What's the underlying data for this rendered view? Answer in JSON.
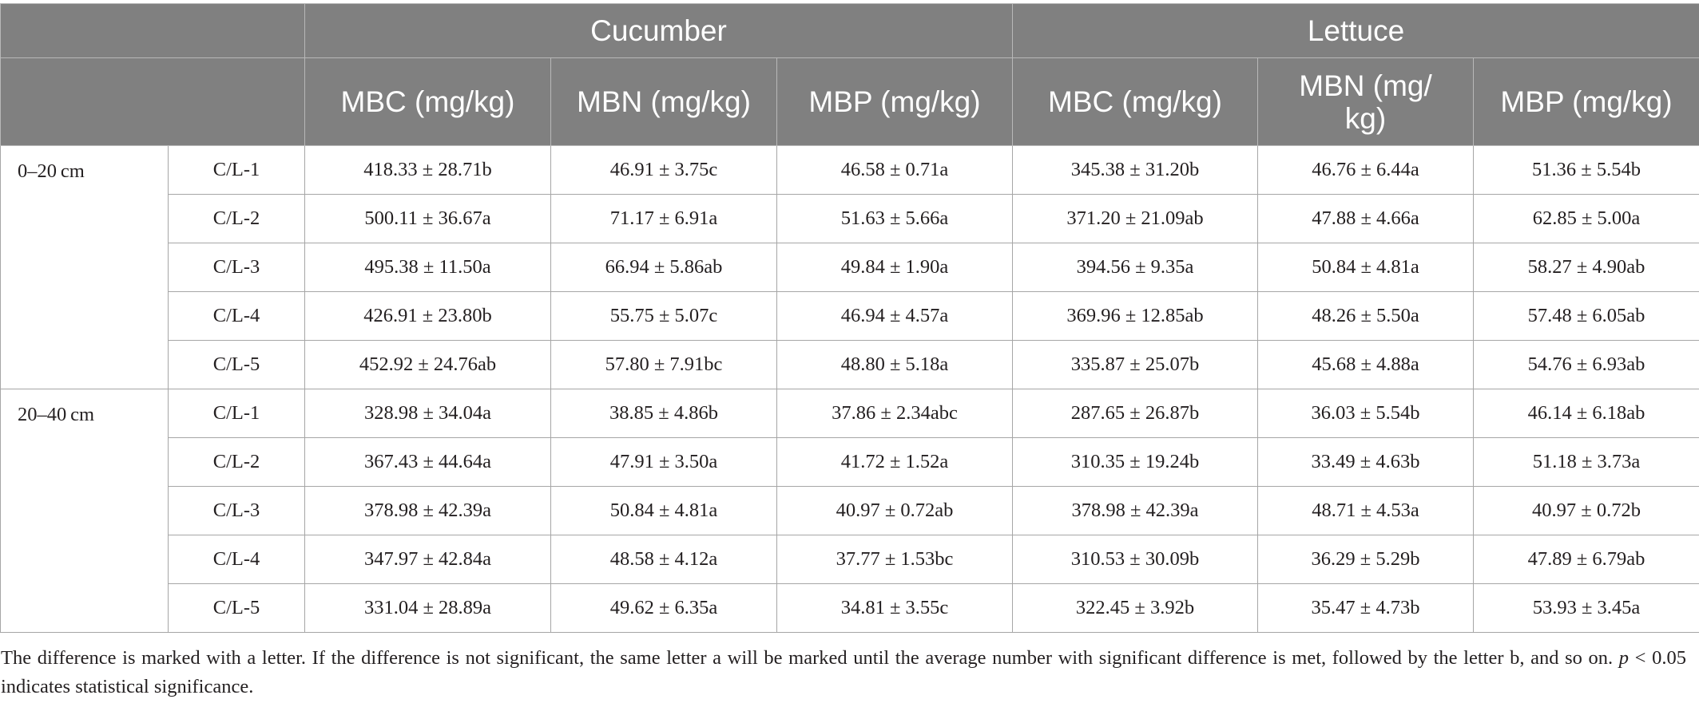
{
  "table": {
    "crops": [
      "Cucumber",
      "Lettuce"
    ],
    "columns": [
      "MBC (mg/kg)",
      "MBN (mg/kg)",
      "MBP (mg/kg)",
      "MBC (mg/kg)",
      "MBN (mg/\nkg)",
      "MBP (mg/kg)"
    ],
    "groups": [
      {
        "depth": "0–20 cm",
        "rows": [
          {
            "treatment": "C/L-1",
            "values": [
              "418.33 ± 28.71b",
              "46.91 ± 3.75c",
              "46.58 ± 0.71a",
              "345.38 ± 31.20b",
              "46.76 ± 6.44a",
              "51.36 ± 5.54b"
            ]
          },
          {
            "treatment": "C/L-2",
            "values": [
              "500.11 ± 36.67a",
              "71.17 ± 6.91a",
              "51.63 ± 5.66a",
              "371.20 ± 21.09ab",
              "47.88 ± 4.66a",
              "62.85 ± 5.00a"
            ]
          },
          {
            "treatment": "C/L-3",
            "values": [
              "495.38 ± 11.50a",
              "66.94 ± 5.86ab",
              "49.84 ± 1.90a",
              "394.56 ± 9.35a",
              "50.84 ± 4.81a",
              "58.27 ± 4.90ab"
            ]
          },
          {
            "treatment": "C/L-4",
            "values": [
              "426.91 ± 23.80b",
              "55.75 ± 5.07c",
              "46.94 ± 4.57a",
              "369.96 ± 12.85ab",
              "48.26 ± 5.50a",
              "57.48 ± 6.05ab"
            ]
          },
          {
            "treatment": "C/L-5",
            "values": [
              "452.92 ± 24.76ab",
              "57.80 ± 7.91bc",
              "48.80 ± 5.18a",
              "335.87 ± 25.07b",
              "45.68 ± 4.88a",
              "54.76 ± 6.93ab"
            ]
          }
        ]
      },
      {
        "depth": "20–40 cm",
        "rows": [
          {
            "treatment": "C/L-1",
            "values": [
              "328.98 ± 34.04a",
              "38.85 ± 4.86b",
              "37.86 ± 2.34abc",
              "287.65 ± 26.87b",
              "36.03 ± 5.54b",
              "46.14 ± 6.18ab"
            ]
          },
          {
            "treatment": "C/L-2",
            "values": [
              "367.43 ± 44.64a",
              "47.91 ± 3.50a",
              "41.72 ± 1.52a",
              "310.35 ± 19.24b",
              "33.49 ± 4.63b",
              "51.18 ± 3.73a"
            ]
          },
          {
            "treatment": "C/L-3",
            "values": [
              "378.98 ± 42.39a",
              "50.84 ± 4.81a",
              "40.97 ± 0.72ab",
              "378.98 ± 42.39a",
              "48.71 ± 4.53a",
              "40.97 ± 0.72b"
            ]
          },
          {
            "treatment": "C/L-4",
            "values": [
              "347.97 ± 42.84a",
              "48.58 ± 4.12a",
              "37.77 ± 1.53bc",
              "310.53 ± 30.09b",
              "36.29 ± 5.29b",
              "47.89 ± 6.79ab"
            ]
          },
          {
            "treatment": "C/L-5",
            "values": [
              "331.04 ± 28.89a",
              "49.62 ± 6.35a",
              "34.81 ± 3.55c",
              "322.45 ± 3.92b",
              "35.47 ± 4.73b",
              "53.93 ± 3.45a"
            ]
          }
        ]
      }
    ]
  },
  "footnote": {
    "text": "The difference is marked with a letter. If the difference is not significant, the same letter a will be marked until the average number with significant difference is met, followed by the letter b, and so on. ",
    "p_symbol": "p",
    "p_text": " < 0.05 indicates statistical significance."
  },
  "colors": {
    "header_background": "#808080",
    "header_text": "#ffffff",
    "body_text": "#231f20",
    "grid_line": "#a6a6a6"
  }
}
